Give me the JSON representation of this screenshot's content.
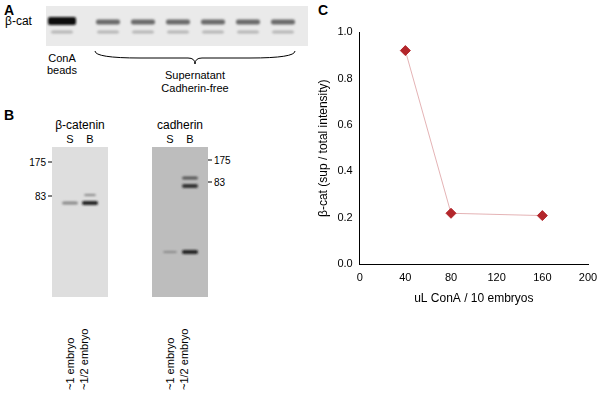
{
  "panels": [
    {
      "label": "A",
      "row_label": "β-cat",
      "lane_label": [
        "ConA",
        "beads"
      ],
      "bracket_label": [
        "Supernatant",
        "Cadherin-free"
      ]
    },
    {
      "label": "B",
      "blots": [
        {
          "title": "β-catenin",
          "lanes": [
            "S",
            "B"
          ],
          "markers": [
            175,
            83
          ],
          "sample_labels": [
            "~1 embryo",
            "~1/2 embryo"
          ]
        },
        {
          "title": "cadherin",
          "lanes": [
            "S",
            "B"
          ],
          "markers": [
            175,
            83
          ],
          "sample_labels": [
            "~1 embryo",
            "~1/2 embryo"
          ]
        }
      ]
    }
  ],
  "chart_data": {
    "panel": "C",
    "type": "line",
    "x": [
      40,
      80,
      160
    ],
    "values": [
      0.92,
      0.22,
      0.21
    ],
    "x_label": "uL ConA / 10 embryos",
    "y_label": "β-cat (sup / total intensity)",
    "xlim": [
      0,
      200
    ],
    "xticks": [
      0,
      40,
      80,
      120,
      160,
      200
    ],
    "ylim": [
      0,
      1
    ],
    "yticks": [
      {
        "value": 0,
        "label": "0.0"
      },
      0.2,
      0.4,
      0.6,
      0.8,
      {
        "value": 1,
        "label": "1.0"
      }
    ],
    "color": "#b3262b",
    "marker": "diamond",
    "line_style": "solid",
    "grid": false
  }
}
